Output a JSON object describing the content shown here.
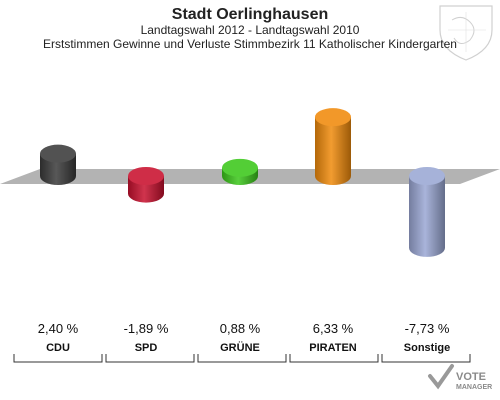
{
  "header": {
    "title": "Stadt Oerlinghausen",
    "subtitle": "Landtagswahl 2012 - Landtagswahl 2010",
    "description": "Erststimmen Gewinne und Verluste Stimmbezirk 11 Katholischer Kindergarten"
  },
  "brand": {
    "line1": "VOTE",
    "line2": "MANAGER"
  },
  "chart_data": {
    "type": "bar",
    "title": "Stadt Oerlinghausen",
    "subtitle": "Landtagswahl 2012 - Landtagswahl 2010",
    "description": "Erststimmen Gewinne und Verluste Stimmbezirk 11 Katholischer Kindergarten",
    "categories": [
      "CDU",
      "SPD",
      "GRÜNE",
      "PIRATEN",
      "Sonstige"
    ],
    "values": [
      2.4,
      -1.89,
      0.88,
      6.33,
      -7.73
    ],
    "value_labels": [
      "2,40 %",
      "-1,89 %",
      "0,88 %",
      "6,33 %",
      "-7,73 %"
    ],
    "colors": [
      "#3a3a3a",
      "#c8102e",
      "#3cc71b",
      "#f08a0c",
      "#9aa7d4"
    ],
    "ylim": [
      -8,
      7
    ],
    "grid": false,
    "legend": "none"
  }
}
